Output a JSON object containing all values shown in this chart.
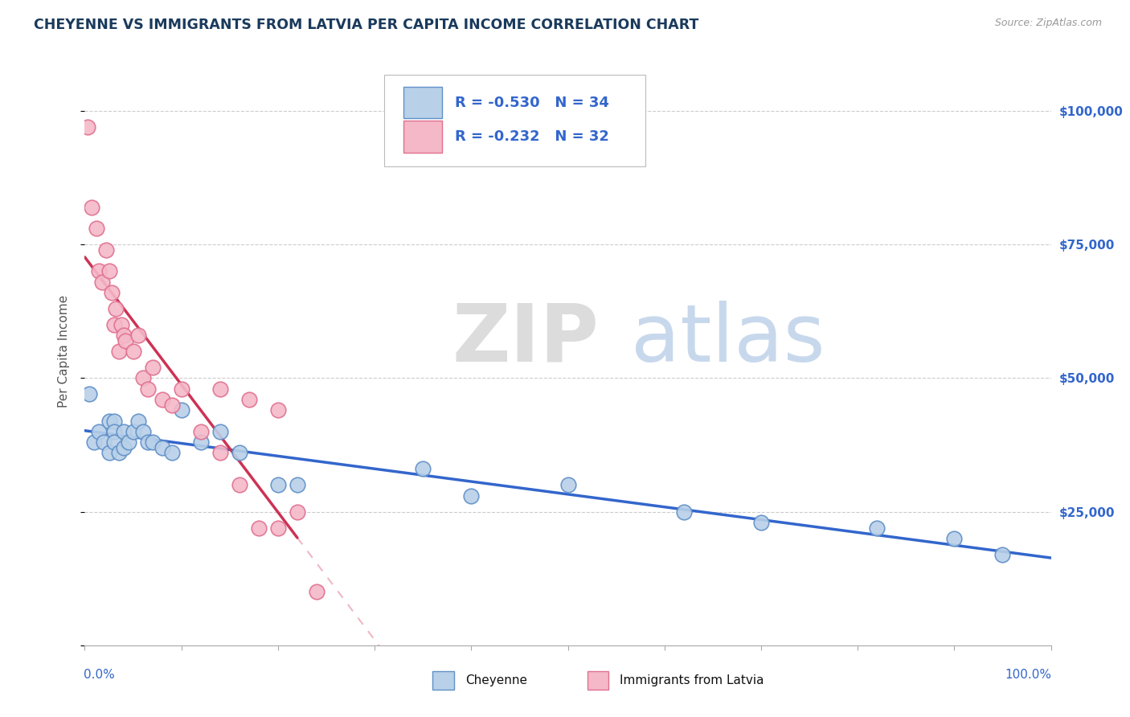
{
  "title": "CHEYENNE VS IMMIGRANTS FROM LATVIA PER CAPITA INCOME CORRELATION CHART",
  "source": "Source: ZipAtlas.com",
  "ylabel": "Per Capita Income",
  "xlim": [
    0.0,
    1.0
  ],
  "ylim": [
    0,
    110000
  ],
  "cheyenne_color": "#b8d0e8",
  "latvia_color": "#f4b8c8",
  "cheyenne_edge_color": "#6090c8",
  "latvia_edge_color": "#e07090",
  "cheyenne_line_color": "#3366cc",
  "latvia_line_color": "#cc3355",
  "right_tick_color": "#3366cc",
  "cheyenne_scatter_x": [
    0.005,
    0.01,
    0.015,
    0.02,
    0.025,
    0.025,
    0.03,
    0.03,
    0.03,
    0.035,
    0.04,
    0.04,
    0.045,
    0.05,
    0.055,
    0.06,
    0.065,
    0.07,
    0.08,
    0.09,
    0.1,
    0.12,
    0.14,
    0.16,
    0.2,
    0.22,
    0.35,
    0.4,
    0.5,
    0.62,
    0.7,
    0.82,
    0.9,
    0.95
  ],
  "cheyenne_scatter_y": [
    47000,
    38000,
    40000,
    38000,
    42000,
    36000,
    42000,
    40000,
    38000,
    36000,
    40000,
    37000,
    38000,
    40000,
    42000,
    40000,
    38000,
    38000,
    37000,
    36000,
    44000,
    38000,
    40000,
    36000,
    30000,
    30000,
    33000,
    28000,
    30000,
    25000,
    23000,
    22000,
    20000,
    17000
  ],
  "latvia_scatter_x": [
    0.003,
    0.007,
    0.012,
    0.015,
    0.018,
    0.022,
    0.025,
    0.028,
    0.03,
    0.032,
    0.035,
    0.038,
    0.04,
    0.042,
    0.05,
    0.055,
    0.06,
    0.065,
    0.07,
    0.08,
    0.09,
    0.1,
    0.12,
    0.14,
    0.16,
    0.18,
    0.2,
    0.22,
    0.24,
    0.14,
    0.17,
    0.2
  ],
  "latvia_scatter_y": [
    97000,
    82000,
    78000,
    70000,
    68000,
    74000,
    70000,
    66000,
    60000,
    63000,
    55000,
    60000,
    58000,
    57000,
    55000,
    58000,
    50000,
    48000,
    52000,
    46000,
    45000,
    48000,
    40000,
    36000,
    30000,
    22000,
    22000,
    25000,
    10000,
    48000,
    46000,
    44000
  ]
}
